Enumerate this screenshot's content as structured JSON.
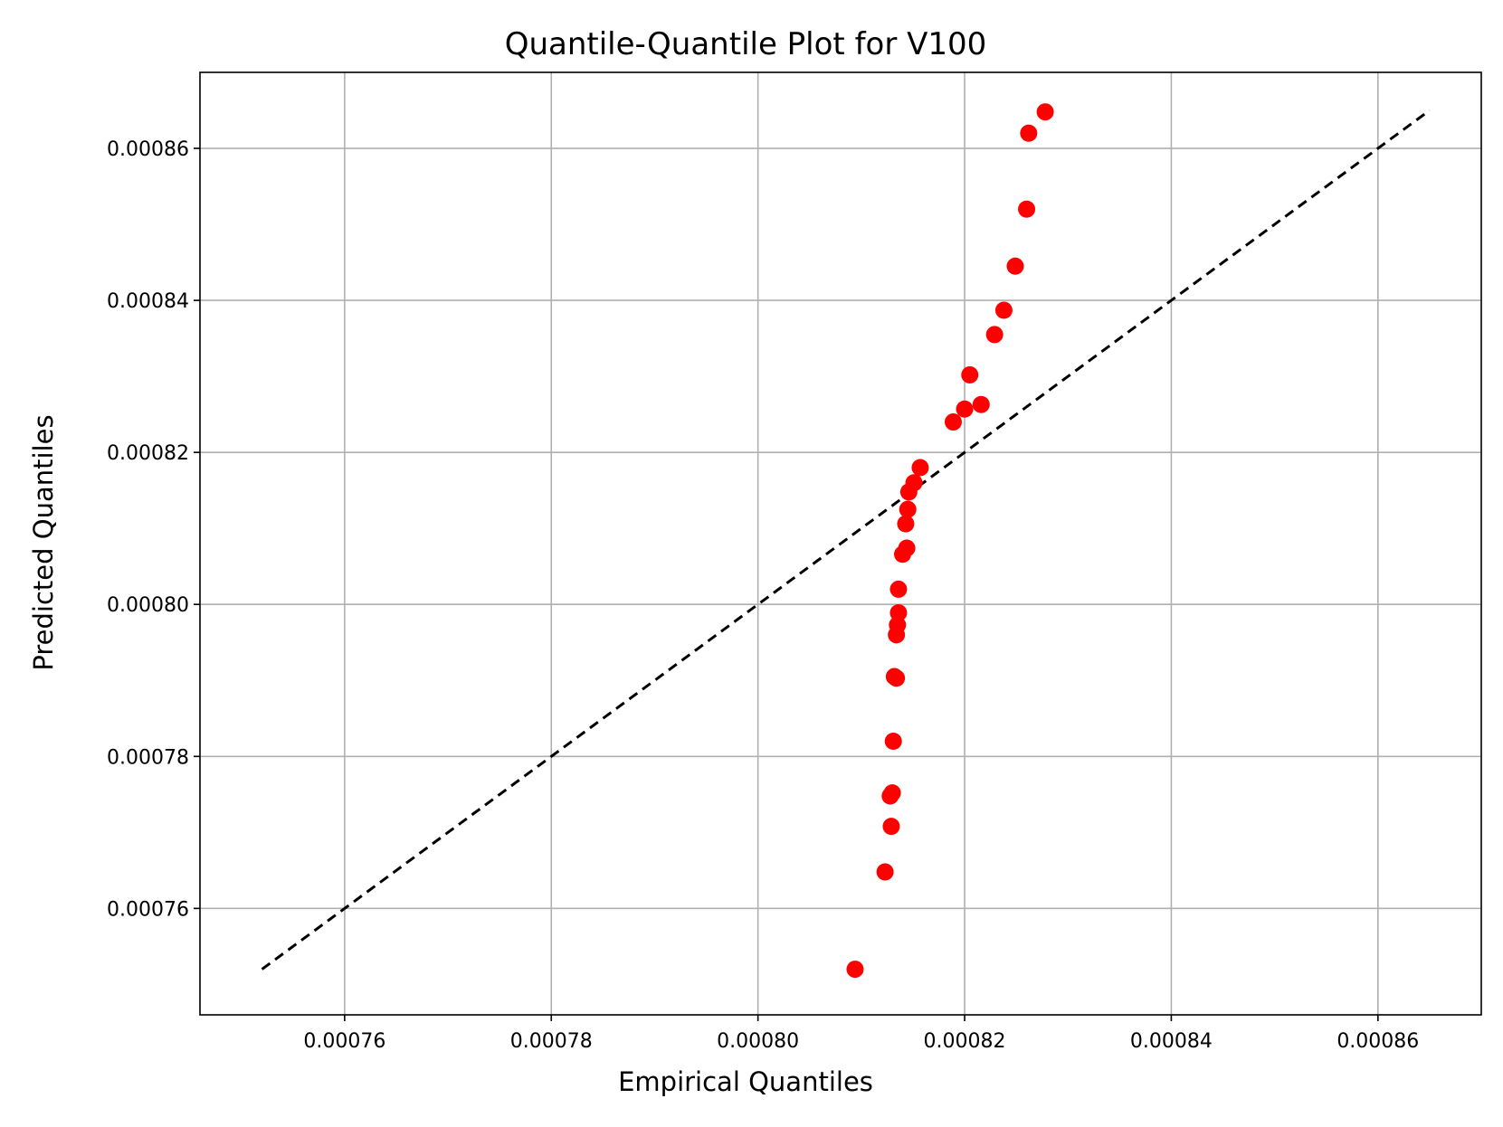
{
  "chart_data": {
    "type": "scatter",
    "title": "Quantile-Quantile Plot for V100",
    "xlabel": "Empirical Quantiles",
    "ylabel": "Predicted Quantiles",
    "xlim": [
      0.000746,
      0.00087
    ],
    "ylim": [
      0.000746,
      0.00087
    ],
    "x_ticks": [
      0.00076,
      0.00078,
      0.0008,
      0.00082,
      0.00084,
      0.00086
    ],
    "y_ticks": [
      0.00076,
      0.00078,
      0.0008,
      0.00082,
      0.00084,
      0.00086
    ],
    "x_tick_labels": [
      "0.00076",
      "0.00078",
      "0.00080",
      "0.00082",
      "0.00084",
      "0.00086"
    ],
    "y_tick_labels": [
      "0.00076",
      "0.00078",
      "0.00080",
      "0.00082",
      "0.00084",
      "0.00086"
    ],
    "grid": true,
    "point_color": "#ff0000",
    "reference_line": {
      "style": "dashed",
      "color": "#000000",
      "from": [
        0.000752,
        0.000752
      ],
      "to": [
        0.000865,
        0.000865
      ]
    },
    "points": [
      {
        "x": 0.0008094,
        "y": 0.000752
      },
      {
        "x": 0.0008123,
        "y": 0.0007648
      },
      {
        "x": 0.0008129,
        "y": 0.0007708
      },
      {
        "x": 0.0008128,
        "y": 0.0007748
      },
      {
        "x": 0.000813,
        "y": 0.0007752
      },
      {
        "x": 0.0008131,
        "y": 0.000782
      },
      {
        "x": 0.0008132,
        "y": 0.0007905
      },
      {
        "x": 0.0008134,
        "y": 0.0007903
      },
      {
        "x": 0.0008134,
        "y": 0.000796
      },
      {
        "x": 0.0008135,
        "y": 0.0007973
      },
      {
        "x": 0.0008136,
        "y": 0.0007989
      },
      {
        "x": 0.0008136,
        "y": 0.000802
      },
      {
        "x": 0.000814,
        "y": 0.0008066
      },
      {
        "x": 0.0008144,
        "y": 0.0008074
      },
      {
        "x": 0.0008143,
        "y": 0.0008106
      },
      {
        "x": 0.0008145,
        "y": 0.0008125
      },
      {
        "x": 0.0008146,
        "y": 0.0008148
      },
      {
        "x": 0.0008151,
        "y": 0.000816
      },
      {
        "x": 0.0008157,
        "y": 0.000818
      },
      {
        "x": 0.0008189,
        "y": 0.000824
      },
      {
        "x": 0.00082,
        "y": 0.0008257
      },
      {
        "x": 0.0008205,
        "y": 0.0008302
      },
      {
        "x": 0.0008216,
        "y": 0.0008263
      },
      {
        "x": 0.0008229,
        "y": 0.0008355
      },
      {
        "x": 0.0008238,
        "y": 0.0008387
      },
      {
        "x": 0.0008249,
        "y": 0.0008445
      },
      {
        "x": 0.000826,
        "y": 0.000852
      },
      {
        "x": 0.0008262,
        "y": 0.000862
      },
      {
        "x": 0.0008278,
        "y": 0.0008648
      }
    ]
  }
}
